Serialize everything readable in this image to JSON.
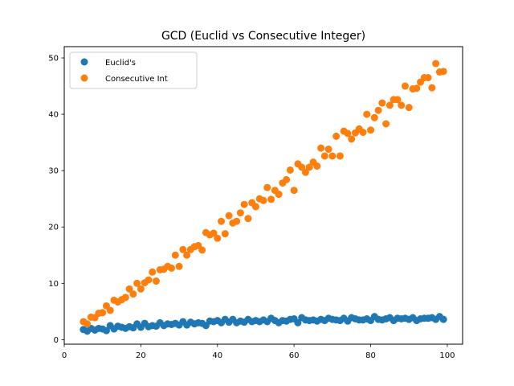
{
  "chart_data": {
    "type": "scatter",
    "title": "GCD (Euclid vs Consecutive Integer)",
    "xlabel": "",
    "ylabel": "",
    "xlim": [
      0,
      104
    ],
    "ylim": [
      -0.8,
      52
    ],
    "xticks": [
      0,
      20,
      40,
      60,
      80,
      100
    ],
    "yticks": [
      0,
      10,
      20,
      30,
      40,
      50
    ],
    "grid": false,
    "legend": "top-left",
    "x": [
      5,
      6,
      7,
      8,
      9,
      10,
      11,
      12,
      13,
      14,
      15,
      16,
      17,
      18,
      19,
      20,
      21,
      22,
      23,
      24,
      25,
      26,
      27,
      28,
      29,
      30,
      31,
      32,
      33,
      34,
      35,
      36,
      37,
      38,
      39,
      40,
      41,
      42,
      43,
      44,
      45,
      46,
      47,
      48,
      49,
      50,
      51,
      52,
      53,
      54,
      55,
      56,
      57,
      58,
      59,
      60,
      61,
      62,
      63,
      64,
      65,
      66,
      67,
      68,
      69,
      70,
      71,
      72,
      73,
      74,
      75,
      76,
      77,
      78,
      79,
      80,
      81,
      82,
      83,
      84,
      85,
      86,
      87,
      88,
      89,
      90,
      91,
      92,
      93,
      94,
      95,
      96,
      97,
      98,
      99
    ],
    "series": [
      {
        "name": "Euclid's",
        "color": "#1f77b4",
        "values": [
          1.8,
          1.5,
          2.0,
          1.7,
          2.0,
          1.9,
          1.6,
          2.5,
          1.9,
          2.4,
          2.2,
          2.0,
          2.3,
          2.1,
          2.8,
          2.2,
          2.9,
          2.3,
          2.5,
          2.4,
          3.0,
          2.5,
          2.8,
          2.7,
          2.9,
          2.6,
          3.2,
          2.6,
          3.1,
          2.8,
          3.0,
          2.9,
          2.5,
          3.3,
          3.2,
          3.4,
          3.0,
          3.6,
          3.1,
          3.6,
          3.0,
          3.3,
          3.1,
          3.6,
          3.2,
          3.4,
          3.2,
          3.5,
          3.2,
          3.8,
          3.4,
          3.0,
          3.4,
          3.3,
          3.6,
          3.7,
          3.0,
          3.9,
          3.5,
          3.4,
          3.5,
          3.3,
          3.6,
          3.4,
          3.8,
          3.6,
          3.5,
          3.4,
          3.8,
          3.3,
          3.9,
          3.7,
          3.5,
          3.5,
          3.7,
          3.4,
          4.1,
          3.6,
          3.5,
          3.7,
          3.9,
          3.4,
          3.8,
          3.7,
          3.8,
          3.6,
          3.9,
          3.4,
          3.7,
          3.8,
          3.8,
          3.9,
          3.6,
          4.1,
          3.6
        ]
      },
      {
        "name": "Consecutive Int",
        "color": "#ff7f0e",
        "values": [
          3.2,
          2.8,
          4.0,
          3.9,
          4.7,
          4.8,
          6.0,
          5.2,
          7.0,
          6.7,
          7.1,
          7.5,
          9.0,
          8.1,
          10.0,
          9.0,
          10.1,
          10.6,
          12.0,
          10.4,
          12.4,
          12.5,
          13.0,
          12.7,
          15.0,
          13.0,
          16.0,
          15.0,
          16.0,
          16.5,
          16.7,
          15.9,
          19.0,
          18.6,
          18.9,
          18.0,
          21.0,
          18.8,
          22.0,
          20.7,
          21.0,
          22.5,
          24.0,
          21.5,
          24.3,
          23.6,
          25.0,
          24.7,
          27.0,
          24.9,
          26.5,
          25.8,
          27.8,
          28.4,
          30.1,
          26.5,
          31.2,
          30.6,
          29.7,
          30.6,
          31.5,
          30.8,
          34.0,
          32.6,
          33.8,
          32.6,
          36.1,
          32.6,
          37.0,
          36.6,
          35.6,
          36.7,
          37.4,
          36.8,
          40.0,
          37.2,
          39.4,
          40.7,
          42.0,
          38.3,
          41.6,
          42.6,
          42.6,
          41.6,
          45.0,
          41.2,
          44.5,
          44.6,
          45.7,
          46.5,
          46.5,
          44.7,
          49.0,
          47.5,
          47.6
        ]
      }
    ]
  }
}
